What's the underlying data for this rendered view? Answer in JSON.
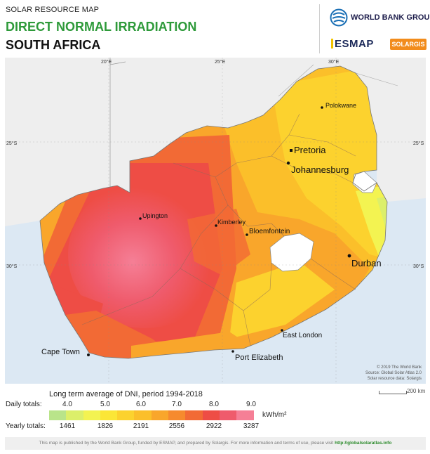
{
  "header": {
    "kicker": "SOLAR RESOURCE MAP",
    "title": "DIRECT NORMAL IRRADIATION",
    "country": "SOUTH AFRICA",
    "logo_worldbank": "WORLD BANK GROUP",
    "logo_esmap": "ESMAP",
    "logo_solargis": "SOLARGIS"
  },
  "map": {
    "graticule": {
      "lon_labels": [
        "20°E",
        "25°E",
        "30°E"
      ],
      "lat_labels": [
        "25°S",
        "30°S"
      ]
    },
    "cities": [
      {
        "name": "Polokwane",
        "size": "small"
      },
      {
        "name": "Pretoria",
        "size": "large"
      },
      {
        "name": "Johannesburg",
        "size": "large"
      },
      {
        "name": "Upington",
        "size": "small"
      },
      {
        "name": "Kimberley",
        "size": "small"
      },
      {
        "name": "Bloemfontein",
        "size": "small"
      },
      {
        "name": "Durban",
        "size": "large"
      },
      {
        "name": "East London",
        "size": "small"
      },
      {
        "name": "Port Elizabeth",
        "size": "medium"
      },
      {
        "name": "Cape Town",
        "size": "medium"
      }
    ],
    "credits": [
      "© 2019 The World Bank",
      "Source: Global Solar Atlas 2.0",
      "Solar resource data: Solargis"
    ],
    "scale_label": "200 km",
    "colors": {
      "sea": "#dce8f3",
      "neighbour": "#eeeeee",
      "lesotho": "#ffffff"
    }
  },
  "legend": {
    "title": "Long term average of DNI, period 1994-2018",
    "daily_label": "Daily totals:",
    "yearly_label": "Yearly totals:",
    "unit": "kWh/m²",
    "daily_values": [
      "4.0",
      "5.0",
      "6.0",
      "7.0",
      "8.0",
      "9.0"
    ],
    "yearly_values": [
      "1461",
      "1826",
      "2191",
      "2556",
      "2922",
      "3287"
    ],
    "colors": [
      "#b9e48a",
      "#dcef6a",
      "#f3f351",
      "#fbe637",
      "#fcd22e",
      "#fbbf2a",
      "#f9a62b",
      "#f68a2e",
      "#f26a35",
      "#ee4d45",
      "#ef5b6c",
      "#f57f96"
    ]
  },
  "footer": {
    "text": "This map is published by the World Bank Group, funded by ESMAP, and prepared by Solargis. For more information and terms of use, please visit",
    "link": "http://globalsolaratlas.info"
  }
}
